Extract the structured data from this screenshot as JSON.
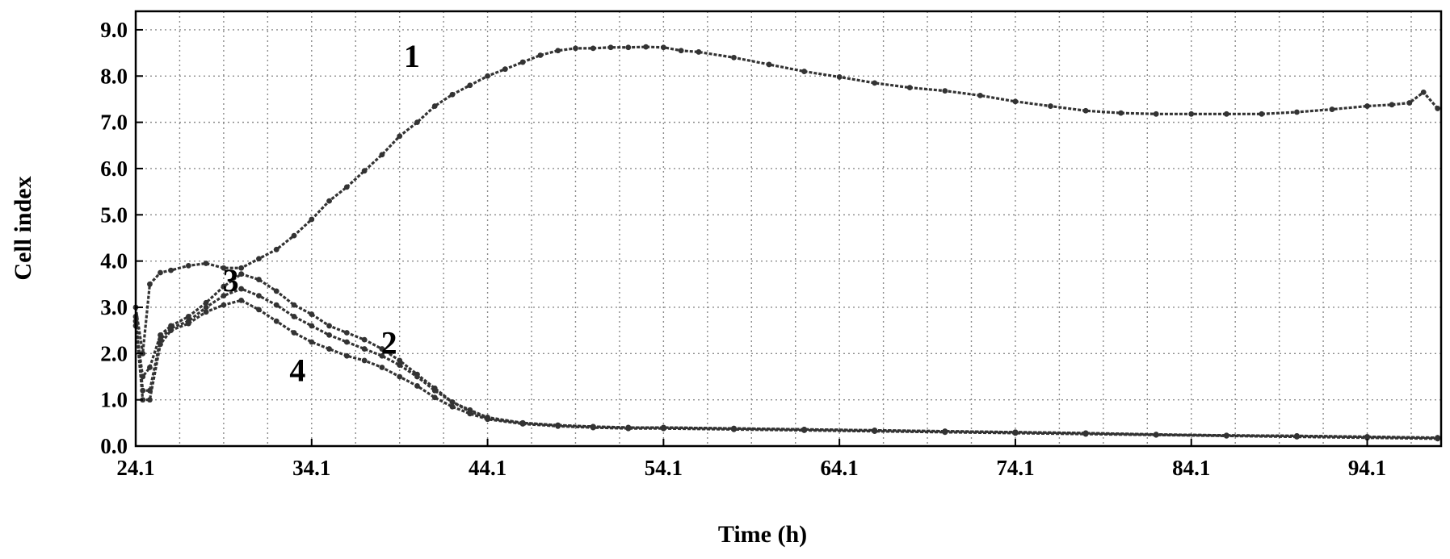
{
  "chart_data": {
    "type": "line",
    "title": "",
    "xlabel": "Time (h)",
    "ylabel": "Cell index",
    "xlim": [
      24.1,
      98.3
    ],
    "ylim": [
      0,
      9.4
    ],
    "grid": true,
    "legend": "none",
    "x_ticks": [
      {
        "value": 24.1,
        "label": "24.1"
      },
      {
        "value": 34.1,
        "label": "34.1"
      },
      {
        "value": 44.1,
        "label": "44.1"
      },
      {
        "value": 54.1,
        "label": "54.1"
      },
      {
        "value": 64.1,
        "label": "64.1"
      },
      {
        "value": 74.1,
        "label": "74.1"
      },
      {
        "value": 84.1,
        "label": "84.1"
      },
      {
        "value": 94.1,
        "label": "94.1"
      }
    ],
    "x_minor_step": 2.5,
    "y_ticks": [
      {
        "value": 0,
        "label": "0.0"
      },
      {
        "value": 1,
        "label": "1.0"
      },
      {
        "value": 2,
        "label": "2.0"
      },
      {
        "value": 3,
        "label": "3.0"
      },
      {
        "value": 4,
        "label": "4.0"
      },
      {
        "value": 5,
        "label": "5.0"
      },
      {
        "value": 6,
        "label": "6.0"
      },
      {
        "value": 7,
        "label": "7.0"
      },
      {
        "value": 8,
        "label": "8.0"
      },
      {
        "value": 9,
        "label": "9.0"
      }
    ],
    "series": [
      {
        "name": "1",
        "color": "#333333",
        "x": [
          24.1,
          24.5,
          24.9,
          25.5,
          26.1,
          27.1,
          28.1,
          29.1,
          30.1,
          31.1,
          32.1,
          33.1,
          34.1,
          35.1,
          36.1,
          37.1,
          38.1,
          39.1,
          40.1,
          41.1,
          42.1,
          43.1,
          44.1,
          45.1,
          46.1,
          47.1,
          48.1,
          49.1,
          50.1,
          51.1,
          52.1,
          53.1,
          54.1,
          55.1,
          56.1,
          58.1,
          60.1,
          62.1,
          64.1,
          66.1,
          68.1,
          70.1,
          72.1,
          74.1,
          76.1,
          78.1,
          80.1,
          82.1,
          84.1,
          86.1,
          88.1,
          90.1,
          92.1,
          94.1,
          95.5,
          96.5,
          97.3,
          98.1
        ],
        "values": [
          3.0,
          2.0,
          3.5,
          3.75,
          3.8,
          3.9,
          3.95,
          3.85,
          3.85,
          4.05,
          4.25,
          4.55,
          4.9,
          5.3,
          5.6,
          5.95,
          6.3,
          6.7,
          7.0,
          7.35,
          7.6,
          7.8,
          8.0,
          8.15,
          8.3,
          8.45,
          8.55,
          8.6,
          8.6,
          8.62,
          8.62,
          8.63,
          8.62,
          8.55,
          8.52,
          8.4,
          8.25,
          8.1,
          7.98,
          7.85,
          7.75,
          7.68,
          7.58,
          7.45,
          7.35,
          7.25,
          7.2,
          7.18,
          7.18,
          7.18,
          7.18,
          7.22,
          7.28,
          7.35,
          7.38,
          7.42,
          7.65,
          7.3
        ]
      },
      {
        "name": "2",
        "color": "#333333",
        "x": [
          24.1,
          24.5,
          24.9,
          25.5,
          26.1,
          27.1,
          28.1,
          29.1,
          30.1,
          31.1,
          32.1,
          33.1,
          34.1,
          35.1,
          36.1,
          37.1,
          38.1,
          39.1,
          40.1,
          41.1,
          42.1,
          43.1,
          44.1,
          46.1,
          48.1,
          50.1,
          52.1,
          54.1,
          58.1,
          62.1,
          66.1,
          70.1,
          74.1,
          78.1,
          82.1,
          86.1,
          90.1,
          94.1,
          98.1
        ],
        "values": [
          2.6,
          1.5,
          1.7,
          2.4,
          2.6,
          2.8,
          3.1,
          3.45,
          3.72,
          3.6,
          3.35,
          3.05,
          2.85,
          2.6,
          2.45,
          2.3,
          2.1,
          1.85,
          1.55,
          1.25,
          0.95,
          0.78,
          0.62,
          0.5,
          0.45,
          0.42,
          0.4,
          0.4,
          0.38,
          0.36,
          0.34,
          0.32,
          0.3,
          0.28,
          0.25,
          0.23,
          0.22,
          0.2,
          0.18
        ]
      },
      {
        "name": "3",
        "color": "#333333",
        "x": [
          24.1,
          24.5,
          24.9,
          25.5,
          26.1,
          27.1,
          28.1,
          29.1,
          30.1,
          31.1,
          32.1,
          33.1,
          34.1,
          35.1,
          36.1,
          37.1,
          38.1,
          39.1,
          40.1,
          41.1,
          42.1,
          43.1,
          44.1,
          46.1,
          48.1,
          50.1,
          52.1,
          54.1,
          58.1,
          62.1,
          66.1,
          70.1,
          74.1,
          78.1,
          82.1,
          86.1,
          90.1,
          94.1,
          98.1
        ],
        "values": [
          2.8,
          1.2,
          1.2,
          2.3,
          2.55,
          2.7,
          3.0,
          3.25,
          3.4,
          3.25,
          3.05,
          2.8,
          2.6,
          2.4,
          2.25,
          2.1,
          1.95,
          1.75,
          1.5,
          1.2,
          0.95,
          0.75,
          0.6,
          0.5,
          0.45,
          0.42,
          0.4,
          0.4,
          0.38,
          0.36,
          0.34,
          0.32,
          0.3,
          0.28,
          0.25,
          0.23,
          0.22,
          0.2,
          0.18
        ]
      },
      {
        "name": "4",
        "color": "#333333",
        "x": [
          24.1,
          24.5,
          24.9,
          25.5,
          26.1,
          27.1,
          28.1,
          29.1,
          30.1,
          31.1,
          32.1,
          33.1,
          34.1,
          35.1,
          36.1,
          37.1,
          38.1,
          39.1,
          40.1,
          41.1,
          42.1,
          43.1,
          44.1,
          46.1,
          48.1,
          50.1,
          52.1,
          54.1,
          58.1,
          62.1,
          66.1,
          70.1,
          74.1,
          78.1,
          82.1,
          86.1,
          90.1,
          94.1,
          98.1
        ],
        "values": [
          2.7,
          1.0,
          1.0,
          2.2,
          2.5,
          2.65,
          2.9,
          3.05,
          3.15,
          2.95,
          2.7,
          2.45,
          2.25,
          2.1,
          1.95,
          1.85,
          1.7,
          1.5,
          1.3,
          1.05,
          0.85,
          0.7,
          0.58,
          0.48,
          0.43,
          0.4,
          0.38,
          0.38,
          0.36,
          0.34,
          0.32,
          0.3,
          0.28,
          0.26,
          0.24,
          0.22,
          0.2,
          0.18,
          0.16
        ]
      }
    ],
    "curve_labels": [
      {
        "text": "1",
        "x": 39.8,
        "y": 8.2
      },
      {
        "text": "2",
        "x": 38.5,
        "y": 2.0
      },
      {
        "text": "3",
        "x": 29.5,
        "y": 3.35
      },
      {
        "text": "4",
        "x": 33.3,
        "y": 1.4
      }
    ]
  }
}
